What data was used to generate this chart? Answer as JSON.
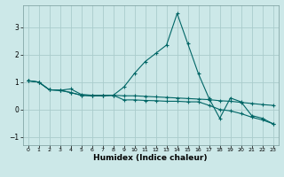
{
  "xlabel": "Humidex (Indice chaleur)",
  "background_color": "#cce8e8",
  "grid_color": "#aacccc",
  "line_color": "#006666",
  "xlim": [
    -0.5,
    23.5
  ],
  "ylim": [
    -1.3,
    3.8
  ],
  "yticks": [
    -1,
    0,
    1,
    2,
    3
  ],
  "xticks": [
    0,
    1,
    2,
    3,
    4,
    5,
    6,
    7,
    8,
    9,
    10,
    11,
    12,
    13,
    14,
    15,
    16,
    17,
    18,
    19,
    20,
    21,
    22,
    23
  ],
  "series1_x": [
    0,
    1,
    2,
    3,
    4,
    5,
    6,
    7,
    8,
    9,
    10,
    11,
    12,
    13,
    14,
    15,
    16,
    17,
    18,
    19,
    20,
    21,
    22,
    23
  ],
  "series1_y": [
    1.05,
    1.0,
    0.72,
    0.7,
    0.62,
    0.52,
    0.5,
    0.5,
    0.52,
    0.82,
    1.32,
    1.75,
    2.05,
    2.35,
    3.5,
    2.4,
    1.3,
    0.4,
    -0.32,
    0.42,
    0.28,
    -0.22,
    -0.32,
    -0.52
  ],
  "series2_x": [
    0,
    1,
    2,
    3,
    4,
    5,
    6,
    7,
    8,
    9,
    10,
    11,
    12,
    13,
    14,
    15,
    16,
    17,
    18,
    19,
    20,
    21,
    22,
    23
  ],
  "series2_y": [
    1.05,
    1.0,
    0.72,
    0.7,
    0.75,
    0.55,
    0.52,
    0.52,
    0.52,
    0.5,
    0.5,
    0.48,
    0.46,
    0.44,
    0.42,
    0.4,
    0.38,
    0.36,
    0.32,
    0.3,
    0.26,
    0.22,
    0.18,
    0.15
  ],
  "series3_x": [
    0,
    1,
    2,
    3,
    4,
    5,
    6,
    7,
    8,
    9,
    10,
    11,
    12,
    13,
    14,
    15,
    16,
    17,
    18,
    19,
    20,
    21,
    22,
    23
  ],
  "series3_y": [
    1.05,
    1.0,
    0.72,
    0.7,
    0.62,
    0.52,
    0.5,
    0.5,
    0.52,
    0.35,
    0.35,
    0.33,
    0.32,
    0.3,
    0.3,
    0.28,
    0.28,
    0.15,
    0.0,
    -0.05,
    -0.15,
    -0.28,
    -0.38,
    -0.52
  ]
}
